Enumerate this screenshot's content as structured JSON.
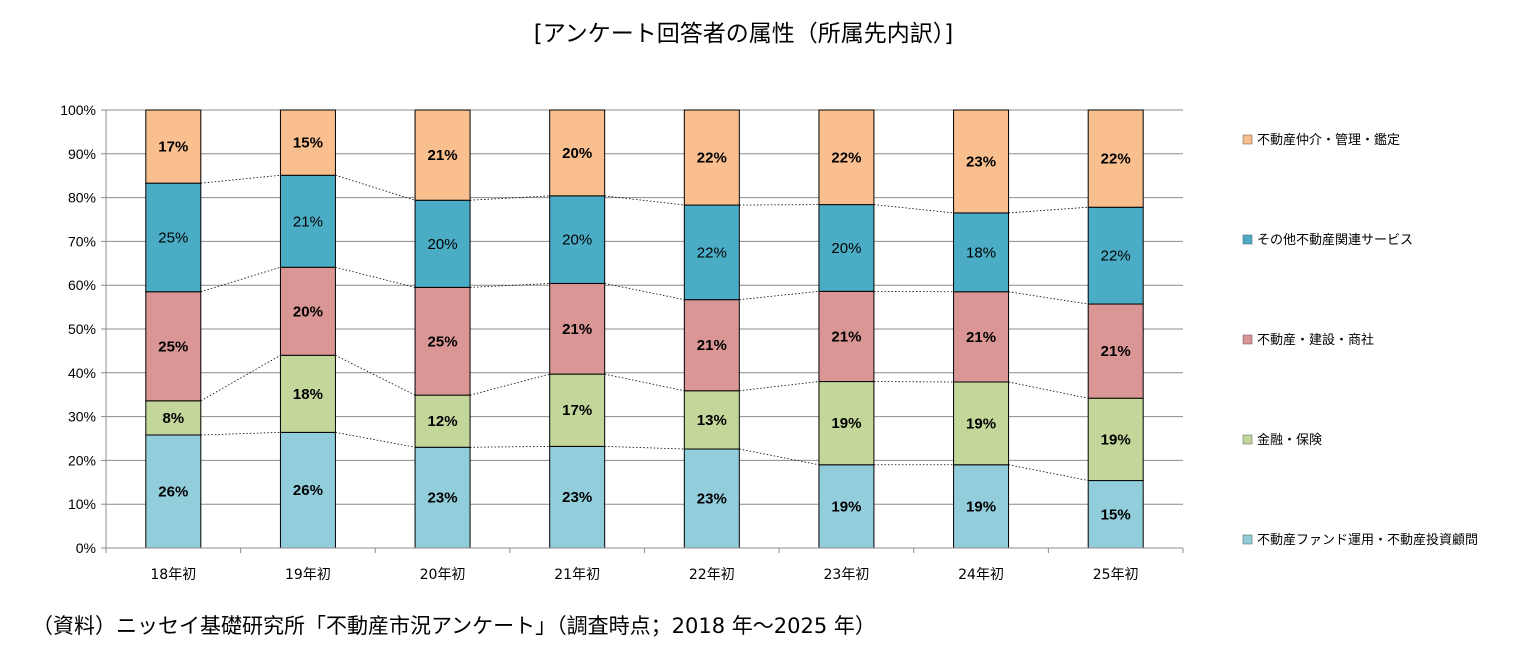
{
  "title": "[アンケート回答者の属性（所属先内訳）]",
  "source": "（資料）ニッセイ基礎研究所「不動産市況アンケート」（調査時点；2018 年～2025 年）",
  "chart_data": {
    "type": "bar",
    "stacked": true,
    "title": "[アンケート回答者の属性（所属先内訳）]",
    "categories": [
      "18年初",
      "19年初",
      "20年初",
      "21年初",
      "22年初",
      "23年初",
      "24年初",
      "25年初"
    ],
    "y_ticks": [
      "0%",
      "10%",
      "20%",
      "30%",
      "40%",
      "50%",
      "60%",
      "70%",
      "80%",
      "90%",
      "100%"
    ],
    "ylim": [
      0,
      100
    ],
    "grid": true,
    "legend_position": "right",
    "series": [
      {
        "name": "不動産ファンド運用・不動産投資顧問",
        "color": "#92cddc",
        "label_bold": true,
        "values": [
          25.8,
          26.4,
          23.0,
          23.2,
          22.6,
          19.0,
          19.0,
          15.4
        ],
        "labels": [
          "26%",
          "26%",
          "23%",
          "23%",
          "23%",
          "19%",
          "19%",
          "15%"
        ]
      },
      {
        "name": "金融・保険",
        "color": "#c4d79b",
        "label_bold": true,
        "values": [
          7.8,
          17.6,
          11.9,
          16.5,
          13.3,
          19.0,
          18.9,
          18.8
        ],
        "labels": [
          "8%",
          "18%",
          "12%",
          "17%",
          "13%",
          "19%",
          "19%",
          "19%"
        ]
      },
      {
        "name": "不動産・建設・商社",
        "color": "#da9694",
        "label_bold": true,
        "values": [
          24.9,
          20.1,
          24.6,
          20.7,
          20.8,
          20.6,
          20.6,
          21.5
        ],
        "labels": [
          "25%",
          "20%",
          "25%",
          "21%",
          "21%",
          "21%",
          "21%",
          "21%"
        ]
      },
      {
        "name": "その他不動産関連サービス",
        "color": "#4bacc6",
        "label_bold": false,
        "values": [
          24.8,
          21.0,
          19.9,
          20.0,
          21.6,
          19.8,
          18.0,
          22.1
        ],
        "labels": [
          "25%",
          "21%",
          "20%",
          "20%",
          "22%",
          "20%",
          "18%",
          "22%"
        ]
      },
      {
        "name": "不動産仲介・管理・鑑定",
        "color": "#fabf8f",
        "label_bold": true,
        "values": [
          16.7,
          14.9,
          20.6,
          19.6,
          21.7,
          21.6,
          23.5,
          22.2
        ],
        "labels": [
          "17%",
          "15%",
          "21%",
          "20%",
          "22%",
          "22%",
          "23%",
          "22%"
        ]
      }
    ]
  }
}
